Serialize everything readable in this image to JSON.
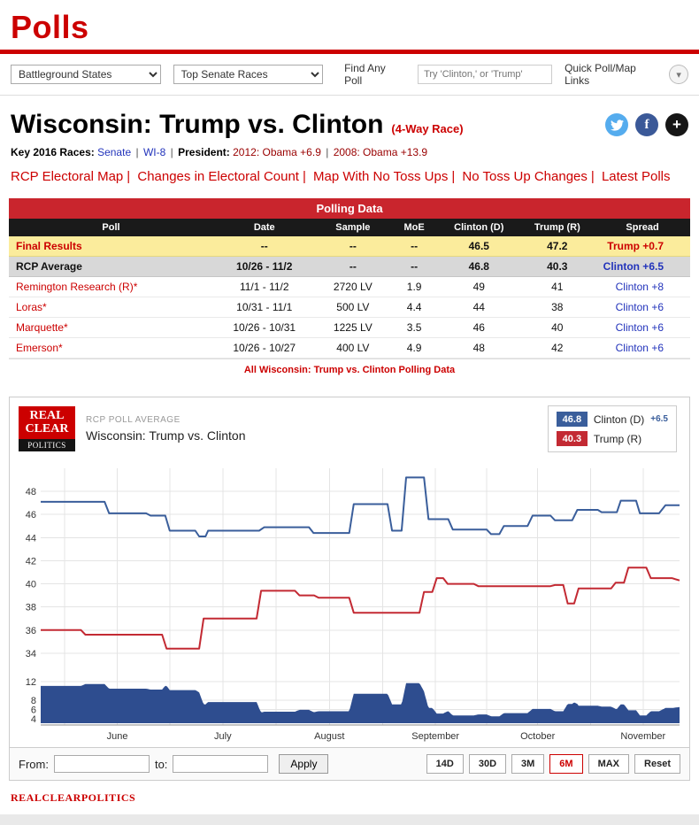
{
  "header": {
    "title": "Polls"
  },
  "toolbar": {
    "battleground_select": "Battleground States",
    "senate_select": "Top Senate Races",
    "find_label": "Find Any Poll",
    "search_placeholder": "Try 'Clinton,' or 'Trump'",
    "quick_links_label": "Quick Poll/Map Links"
  },
  "icons": {
    "facebook": "f",
    "plus": "+",
    "chevron": "▾"
  },
  "race_header": {
    "title": "Wisconsin: Trump vs. Clinton",
    "race_type": "(4-Way Race)",
    "key_label": "Key 2016 Races:",
    "senate_link": "Senate",
    "district_link": "WI-8",
    "president_label": "President:",
    "result_2012": "2012: Obama +6.9",
    "result_2008": "2008: Obama +13.9",
    "divider": "|"
  },
  "nav_links": [
    "RCP Electoral Map",
    "Changes in Electoral Count",
    "Map With No Toss Ups",
    "No Toss Up Changes",
    "Latest Polls"
  ],
  "table": {
    "title": "Polling Data",
    "headers": [
      "Poll",
      "Date",
      "Sample",
      "MoE",
      "Clinton (D)",
      "Trump (R)",
      "Spread"
    ],
    "rows": [
      {
        "poll": "Final Results",
        "date": "--",
        "sample": "--",
        "moe": "--",
        "clinton": "46.5",
        "trump": "47.2",
        "spread": "Trump +0.7"
      },
      {
        "poll": "RCP Average",
        "date": "10/26 - 11/2",
        "sample": "--",
        "moe": "--",
        "clinton": "46.8",
        "trump": "40.3",
        "spread": "Clinton +6.5"
      },
      {
        "poll": "Remington Research (R)*",
        "date": "11/1 - 11/2",
        "sample": "2720 LV",
        "moe": "1.9",
        "clinton": "49",
        "trump": "41",
        "spread": "Clinton +8"
      },
      {
        "poll": "Loras*",
        "date": "10/31 - 11/1",
        "sample": "500 LV",
        "moe": "4.4",
        "clinton": "44",
        "trump": "38",
        "spread": "Clinton +6"
      },
      {
        "poll": "Marquette*",
        "date": "10/26 - 10/31",
        "sample": "1225 LV",
        "moe": "3.5",
        "clinton": "46",
        "trump": "40",
        "spread": "Clinton +6"
      },
      {
        "poll": "Emerson*",
        "date": "10/26 - 10/27",
        "sample": "400 LV",
        "moe": "4.9",
        "clinton": "48",
        "trump": "42",
        "spread": "Clinton +6"
      }
    ],
    "footer_link": "All Wisconsin: Trump vs. Clinton Polling Data"
  },
  "chart_panel": {
    "logo": {
      "line1": "REAL",
      "line2": "CLEAR",
      "line3": "POLITICS"
    },
    "kicker": "RCP POLL AVERAGE",
    "title": "Wisconsin: Trump vs. Clinton",
    "legend": [
      {
        "value": "46.8",
        "name": "Clinton (D)",
        "delta": "+6.5"
      },
      {
        "value": "40.3",
        "name": "Trump (R)",
        "delta": ""
      }
    ]
  },
  "chart_data": {
    "type": "line",
    "title": "Wisconsin: Trump vs. Clinton",
    "x_months": [
      "June",
      "July",
      "August",
      "September",
      "October",
      "November"
    ],
    "month_positions": [
      0.12,
      0.285,
      0.452,
      0.618,
      0.778,
      0.943
    ],
    "gridlines_x": [
      0.0375,
      0.12,
      0.2025,
      0.285,
      0.3685,
      0.452,
      0.535,
      0.618,
      0.698,
      0.778,
      0.8605,
      0.943
    ],
    "main_axis": {
      "min": 33,
      "max": 50,
      "ticks": [
        48,
        46,
        44,
        42,
        40,
        38,
        36,
        34
      ]
    },
    "spread_axis": {
      "min": 3,
      "max": 13,
      "ticks": [
        12,
        8,
        6,
        4
      ]
    },
    "spread_fill": "#2e4d8f",
    "series": [
      {
        "name": "Clinton (D)",
        "color": "#3a5e9b",
        "final": 46.8,
        "points": [
          [
            0,
            47.1
          ],
          [
            0.1,
            47.1
          ],
          [
            0.107,
            46.1
          ],
          [
            0.165,
            46.1
          ],
          [
            0.172,
            45.9
          ],
          [
            0.195,
            45.9
          ],
          [
            0.202,
            44.6
          ],
          [
            0.242,
            44.6
          ],
          [
            0.248,
            44.1
          ],
          [
            0.258,
            44.1
          ],
          [
            0.262,
            44.6
          ],
          [
            0.342,
            44.6
          ],
          [
            0.35,
            44.9
          ],
          [
            0.42,
            44.9
          ],
          [
            0.427,
            44.4
          ],
          [
            0.483,
            44.4
          ],
          [
            0.49,
            46.9
          ],
          [
            0.543,
            46.9
          ],
          [
            0.55,
            44.6
          ],
          [
            0.565,
            44.6
          ],
          [
            0.572,
            49.2
          ],
          [
            0.6,
            49.2
          ],
          [
            0.607,
            45.6
          ],
          [
            0.638,
            45.6
          ],
          [
            0.645,
            44.7
          ],
          [
            0.698,
            44.7
          ],
          [
            0.705,
            44.3
          ],
          [
            0.718,
            44.3
          ],
          [
            0.725,
            45.0
          ],
          [
            0.762,
            45.0
          ],
          [
            0.77,
            45.9
          ],
          [
            0.798,
            45.9
          ],
          [
            0.805,
            45.5
          ],
          [
            0.832,
            45.5
          ],
          [
            0.84,
            46.4
          ],
          [
            0.872,
            46.4
          ],
          [
            0.878,
            46.2
          ],
          [
            0.902,
            46.2
          ],
          [
            0.908,
            47.2
          ],
          [
            0.932,
            47.2
          ],
          [
            0.938,
            46.1
          ],
          [
            0.968,
            46.1
          ],
          [
            0.978,
            46.8
          ],
          [
            1,
            46.8
          ]
        ]
      },
      {
        "name": "Trump (R)",
        "color": "#c32a33",
        "final": 40.3,
        "points": [
          [
            0,
            36.0
          ],
          [
            0.063,
            36.0
          ],
          [
            0.07,
            35.6
          ],
          [
            0.19,
            35.6
          ],
          [
            0.197,
            34.4
          ],
          [
            0.248,
            34.4
          ],
          [
            0.255,
            37.0
          ],
          [
            0.338,
            37.0
          ],
          [
            0.345,
            39.4
          ],
          [
            0.398,
            39.4
          ],
          [
            0.405,
            39.0
          ],
          [
            0.428,
            39.0
          ],
          [
            0.435,
            38.8
          ],
          [
            0.483,
            38.8
          ],
          [
            0.49,
            37.5
          ],
          [
            0.593,
            37.5
          ],
          [
            0.6,
            39.3
          ],
          [
            0.613,
            39.3
          ],
          [
            0.62,
            40.5
          ],
          [
            0.63,
            40.5
          ],
          [
            0.637,
            40.0
          ],
          [
            0.678,
            40.0
          ],
          [
            0.685,
            39.8
          ],
          [
            0.798,
            39.8
          ],
          [
            0.805,
            39.9
          ],
          [
            0.818,
            39.9
          ],
          [
            0.825,
            38.3
          ],
          [
            0.835,
            38.3
          ],
          [
            0.842,
            39.6
          ],
          [
            0.893,
            39.6
          ],
          [
            0.9,
            40.1
          ],
          [
            0.913,
            40.1
          ],
          [
            0.92,
            41.4
          ],
          [
            0.948,
            41.4
          ],
          [
            0.955,
            40.5
          ],
          [
            0.988,
            40.5
          ],
          [
            1,
            40.3
          ]
        ]
      }
    ]
  },
  "controls": {
    "from_label": "From:",
    "to_label": "to:",
    "apply_label": "Apply",
    "ranges": [
      "14D",
      "30D",
      "3M",
      "6M",
      "MAX",
      "Reset"
    ],
    "active_range": "6M"
  },
  "footer": {
    "logo": "REALCLEARPOLITICS"
  },
  "colors": {
    "brand_red": "#cc0000",
    "table_header_red": "#c9252d",
    "clinton_blue": "#3a5e9b",
    "trump_red": "#c32a33",
    "spread_fill": "#2e4d8f",
    "link_blue": "#2233bb",
    "final_row_yellow": "#fbec9c",
    "average_row_gray": "#d8d8d8"
  }
}
